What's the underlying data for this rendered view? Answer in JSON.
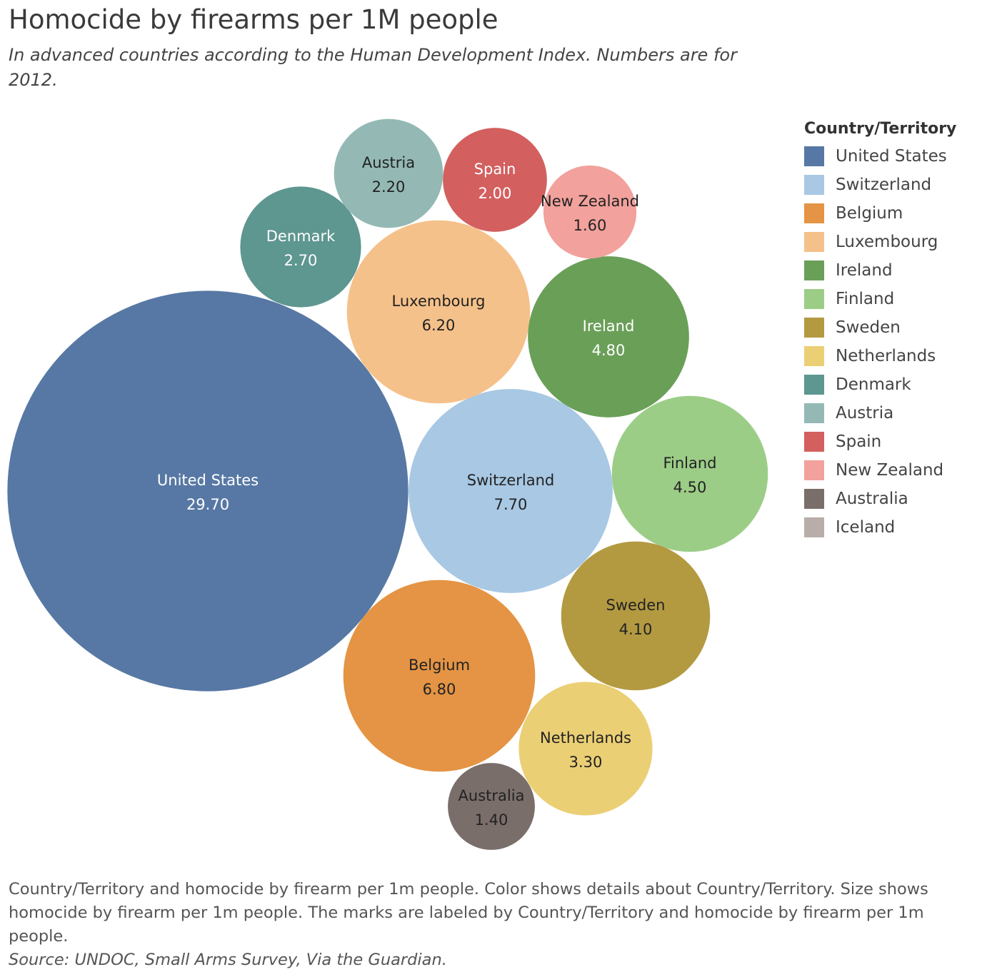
{
  "chart_data": {
    "type": "bubble",
    "title": "Homocide by firearms per 1M people",
    "subtitle": "In advanced countries according to the Human Development Index. Numbers are for 2012.",
    "legend": {
      "title": "Country/Territory",
      "placement": "right",
      "items": [
        {
          "label": "United States",
          "color": "#5778a4"
        },
        {
          "label": "Switzerland",
          "color": "#a8c8e4"
        },
        {
          "label": "Belgium",
          "color": "#e49444"
        },
        {
          "label": "Luxembourg",
          "color": "#f5c18a"
        },
        {
          "label": "Ireland",
          "color": "#6a9f58"
        },
        {
          "label": "Finland",
          "color": "#9ccd87"
        },
        {
          "label": "Sweden",
          "color": "#b39a41"
        },
        {
          "label": "Netherlands",
          "color": "#ebcf75"
        },
        {
          "label": "Denmark",
          "color": "#5e9690"
        },
        {
          "label": "Austria",
          "color": "#94b9b4"
        },
        {
          "label": "Spain",
          "color": "#d35f5f"
        },
        {
          "label": "New Zealand",
          "color": "#f2a19c"
        },
        {
          "label": "Australia",
          "color": "#7a6e6b"
        },
        {
          "label": "Iceland",
          "color": "#b8ada9"
        }
      ]
    },
    "points": [
      {
        "name": "United States",
        "value": 29.7,
        "value_label": "29.70",
        "color": "#5778a4",
        "label_color": "#ffffff"
      },
      {
        "name": "Switzerland",
        "value": 7.7,
        "value_label": "7.70",
        "color": "#a8c8e4",
        "label_color": "#222222"
      },
      {
        "name": "Belgium",
        "value": 6.8,
        "value_label": "6.80",
        "color": "#e49444",
        "label_color": "#222222"
      },
      {
        "name": "Luxembourg",
        "value": 6.2,
        "value_label": "6.20",
        "color": "#f5c18a",
        "label_color": "#222222"
      },
      {
        "name": "Ireland",
        "value": 4.8,
        "value_label": "4.80",
        "color": "#6a9f58",
        "label_color": "#ffffff"
      },
      {
        "name": "Finland",
        "value": 4.5,
        "value_label": "4.50",
        "color": "#9ccd87",
        "label_color": "#222222"
      },
      {
        "name": "Sweden",
        "value": 4.1,
        "value_label": "4.10",
        "color": "#b39a41",
        "label_color": "#222222"
      },
      {
        "name": "Netherlands",
        "value": 3.3,
        "value_label": "3.30",
        "color": "#ebcf75",
        "label_color": "#222222"
      },
      {
        "name": "Denmark",
        "value": 2.7,
        "value_label": "2.70",
        "color": "#5e9690",
        "label_color": "#ffffff"
      },
      {
        "name": "Austria",
        "value": 2.2,
        "value_label": "2.20",
        "color": "#94b9b4",
        "label_color": "#222222"
      },
      {
        "name": "Spain",
        "value": 2.0,
        "value_label": "2.00",
        "color": "#d35f5f",
        "label_color": "#ffffff"
      },
      {
        "name": "New Zealand",
        "value": 1.6,
        "value_label": "1.60",
        "color": "#f2a19c",
        "label_color": "#222222"
      },
      {
        "name": "Australia",
        "value": 1.4,
        "value_label": "1.40",
        "color": "#7a6e6b",
        "label_color": "#222222"
      }
    ]
  },
  "caption": "Country/Territory and homocide by firearm per 1m people.  Color shows details about Country/Territory.  Size shows homocide by firearm per 1m people.  The marks are labeled by Country/Territory and homocide by firearm per 1m people.",
  "source": "Source: UNDOC, Small Arms Survey, Via the Guardian."
}
